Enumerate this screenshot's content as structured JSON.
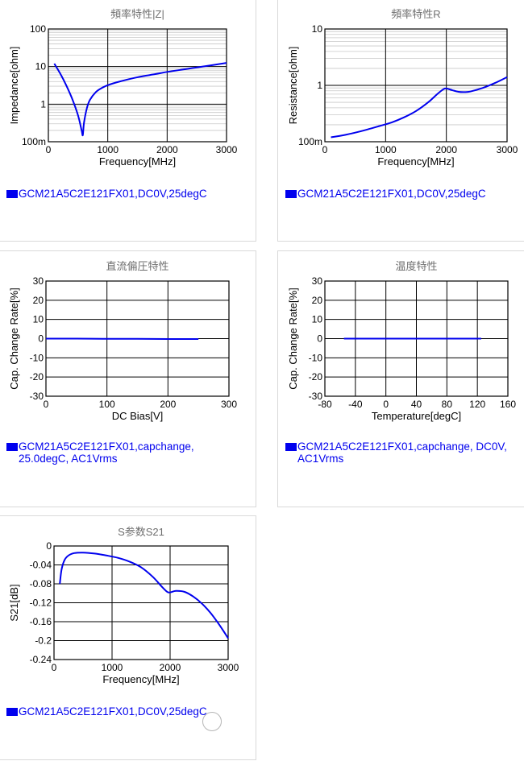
{
  "chart_data": [
    {
      "id": "impedance",
      "type": "line",
      "title": "頻率特性|Z|",
      "xlabel": "Frequency[MHz]",
      "ylabel": "Impedance[ohm]",
      "xscale": "linear",
      "yscale": "log",
      "xlim": [
        0,
        3000
      ],
      "ylim": [
        0.1,
        100
      ],
      "xticks": [
        0,
        1000,
        2000,
        3000
      ],
      "xtick_labels": [
        "0",
        "1000",
        "2000",
        "3000"
      ],
      "yticks": [
        0.1,
        1,
        10,
        100
      ],
      "ytick_labels": [
        "100m",
        "1",
        "10",
        "100"
      ],
      "legend": "GCM21A5C2E121FX01,DC0V,25degC",
      "series": [
        {
          "name": "GCM21A5C2E121FX01,DC0V,25degC",
          "color": "#0000ee",
          "x": [
            100,
            200,
            300,
            400,
            500,
            560,
            580,
            600,
            650,
            700,
            800,
            900,
            1000,
            1200,
            1500,
            1800,
            2000,
            2300,
            2600,
            3000
          ],
          "y": [
            12,
            6.5,
            3.2,
            1.4,
            0.5,
            0.2,
            0.15,
            0.32,
            0.8,
            1.3,
            2.1,
            2.7,
            3.2,
            4.0,
            5.2,
            6.3,
            7.2,
            8.5,
            10,
            12.5
          ]
        }
      ]
    },
    {
      "id": "resistance",
      "type": "line",
      "title": "頻率特性R",
      "xlabel": "Frequency[MHz]",
      "ylabel": "Resistance[ohm]",
      "xscale": "linear",
      "yscale": "log",
      "xlim": [
        0,
        3000
      ],
      "ylim": [
        0.1,
        10
      ],
      "xticks": [
        0,
        1000,
        2000,
        3000
      ],
      "xtick_labels": [
        "0",
        "1000",
        "2000",
        "3000"
      ],
      "yticks": [
        0.1,
        1,
        10
      ],
      "ytick_labels": [
        "100m",
        "1",
        "10"
      ],
      "legend": "GCM21A5C2E121FX01,DC0V,25degC",
      "series": [
        {
          "name": "GCM21A5C2E121FX01,DC0V,25degC",
          "color": "#0000ee",
          "x": [
            100,
            300,
            500,
            700,
            900,
            1100,
            1300,
            1500,
            1700,
            1850,
            1950,
            2000,
            2100,
            2200,
            2300,
            2400,
            2600,
            2800,
            3000
          ],
          "y": [
            0.12,
            0.13,
            0.145,
            0.165,
            0.19,
            0.22,
            0.27,
            0.35,
            0.5,
            0.7,
            0.85,
            0.88,
            0.82,
            0.77,
            0.76,
            0.78,
            0.9,
            1.1,
            1.4
          ]
        }
      ]
    },
    {
      "id": "dcbias",
      "type": "line",
      "title": "直流偏圧特性",
      "xlabel": "DC Bias[V]",
      "ylabel": "Cap. Change Rate[%]",
      "xscale": "linear",
      "yscale": "linear",
      "xlim": [
        0,
        300
      ],
      "ylim": [
        -30,
        30
      ],
      "xticks": [
        0,
        100,
        200,
        300
      ],
      "xtick_labels": [
        "0",
        "100",
        "200",
        "300"
      ],
      "yticks": [
        -30,
        -20,
        -10,
        0,
        10,
        20,
        30
      ],
      "ytick_labels": [
        "-30",
        "-20",
        "-10",
        "0",
        "10",
        "20",
        "30"
      ],
      "legend": "GCM21A5C2E121FX01,capchange, 25.0degC, AC1Vrms",
      "series": [
        {
          "name": "GCM21A5C2E121FX01,capchange, 25.0degC, AC1Vrms",
          "color": "#0000ee",
          "x": [
            0,
            50,
            100,
            150,
            200,
            250
          ],
          "y": [
            0,
            0,
            -0.1,
            -0.1,
            -0.2,
            -0.2
          ]
        }
      ]
    },
    {
      "id": "temperature",
      "type": "line",
      "title": "温度特性",
      "xlabel": "Temperature[degC]",
      "ylabel": "Cap. Change Rate[%]",
      "xscale": "linear",
      "yscale": "linear",
      "xlim": [
        -80,
        160
      ],
      "ylim": [
        -30,
        30
      ],
      "xticks": [
        -80,
        -40,
        0,
        40,
        80,
        120,
        160
      ],
      "xtick_labels": [
        "-80",
        "-40",
        "0",
        "40",
        "80",
        "120",
        "160"
      ],
      "yticks": [
        -30,
        -20,
        -10,
        0,
        10,
        20,
        30
      ],
      "ytick_labels": [
        "-30",
        "-20",
        "-10",
        "0",
        "10",
        "20",
        "30"
      ],
      "legend": "GCM21A5C2E121FX01,capchange, DC0V, AC1Vrms",
      "series": [
        {
          "name": "GCM21A5C2E121FX01,capchange, DC0V, AC1Vrms",
          "color": "#0000ee",
          "x": [
            -55,
            -25,
            0,
            25,
            55,
            85,
            125
          ],
          "y": [
            0,
            0,
            0,
            0,
            0,
            0,
            0
          ]
        }
      ]
    },
    {
      "id": "s21",
      "type": "line",
      "title": "S参数S21",
      "xlabel": "Frequency[MHz]",
      "ylabel": "S21[dB]",
      "xscale": "linear",
      "yscale": "linear",
      "xlim": [
        0,
        3000
      ],
      "ylim": [
        -0.24,
        0
      ],
      "xticks": [
        0,
        1000,
        2000,
        3000
      ],
      "xtick_labels": [
        "0",
        "1000",
        "2000",
        "3000"
      ],
      "yticks": [
        -0.24,
        -0.2,
        -0.16,
        -0.12,
        -0.08,
        -0.04,
        0
      ],
      "ytick_labels": [
        "-0.24",
        "-0.2",
        "-0.16",
        "-0.12",
        "-0.08",
        "-0.04",
        "0"
      ],
      "legend": "GCM21A5C2E121FX01,DC0V,25degC",
      "series": [
        {
          "name": "GCM21A5C2E121FX01,DC0V,25degC",
          "color": "#0000ee",
          "x": [
            100,
            130,
            180,
            250,
            350,
            500,
            700,
            900,
            1100,
            1300,
            1500,
            1700,
            1850,
            1950,
            2000,
            2100,
            2250,
            2400,
            2550,
            2700,
            2850,
            3000
          ],
          "y": [
            -0.08,
            -0.05,
            -0.03,
            -0.02,
            -0.015,
            -0.014,
            -0.016,
            -0.02,
            -0.025,
            -0.033,
            -0.045,
            -0.065,
            -0.085,
            -0.097,
            -0.098,
            -0.095,
            -0.097,
            -0.107,
            -0.122,
            -0.142,
            -0.167,
            -0.195
          ]
        }
      ]
    }
  ]
}
